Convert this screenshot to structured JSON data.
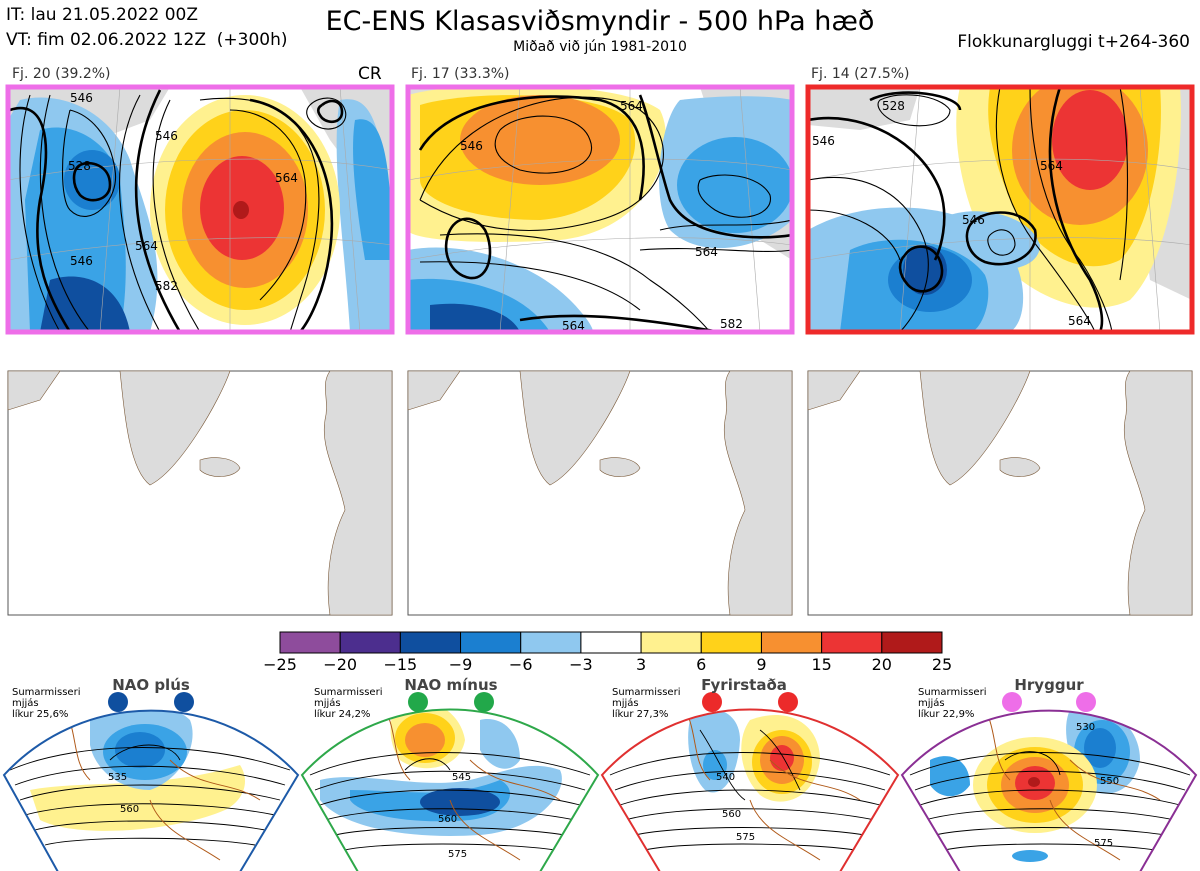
{
  "header": {
    "it_line": "IT: lau 21.05.2022 00Z",
    "vt_line": "VT: fim 02.06.2022 12Z  (+300h)",
    "title": "EC-ENS Klasasviðsmyndir - 500 hPa hæð",
    "subtitle": "Miðað við jún 1981-2010",
    "cluster_window": "Flokkunargluggi t+264-360"
  },
  "clusters": [
    {
      "label": "Fj. 20 (39.2%)",
      "tag": "CR",
      "border_color": "#ee6ee8",
      "contour_labels": [
        "546",
        "528",
        "546",
        "564",
        "582",
        "546",
        "564"
      ]
    },
    {
      "label": "Fj. 17 (33.3%)",
      "tag": "",
      "border_color": "#ee6ee8",
      "contour_labels": [
        "564",
        "564",
        "564",
        "582",
        "546"
      ]
    },
    {
      "label": "Fj. 14 (27.5%)",
      "tag": "",
      "border_color": "#ee2a2a",
      "contour_labels": [
        "528",
        "546",
        "564",
        "546",
        "564"
      ]
    }
  ],
  "colorbar": {
    "ticks": [
      "−25",
      "−20",
      "−15",
      "−9",
      "−6",
      "−3",
      "3",
      "6",
      "9",
      "15",
      "20",
      "25"
    ],
    "colors": [
      "#8e4c9c",
      "#4c2e8e",
      "#0f4f9f",
      "#1b7fd0",
      "#3aa3e6",
      "#8fc8ef",
      "#ffffff",
      "#fff18f",
      "#ffd21a",
      "#f79030",
      "#ec3434",
      "#b01a1a"
    ]
  },
  "regimes": [
    {
      "name": "NAO plús",
      "season": "Sumarmisseri",
      "cluster": "mjjás",
      "likelihood": "líkur 25,6%",
      "color": "#1d5aa8",
      "dot_color": "#0f4f9f",
      "contours": [
        "535",
        "560"
      ]
    },
    {
      "name": "NAO mínus",
      "season": "Sumarmisseri",
      "cluster": "mjjás",
      "likelihood": "líkur 24,2%",
      "color": "#2ea84a",
      "dot_color": "#22a84a",
      "contours": [
        "545",
        "560",
        "575"
      ]
    },
    {
      "name": "Fyrirstaða",
      "season": "Sumarmisseri",
      "cluster": "mjjás",
      "likelihood": "líkur 27,3%",
      "color": "#e03030",
      "dot_color": "#ec2a2a",
      "contours": [
        "540",
        "560",
        "575"
      ]
    },
    {
      "name": "Hryggur",
      "season": "Sumarmisseri",
      "cluster": "mjjás",
      "likelihood": "líkur 22,9%",
      "color": "#8a2f94",
      "dot_color": "#ee6ee8",
      "contours": [
        "530",
        "550",
        "575"
      ]
    }
  ]
}
